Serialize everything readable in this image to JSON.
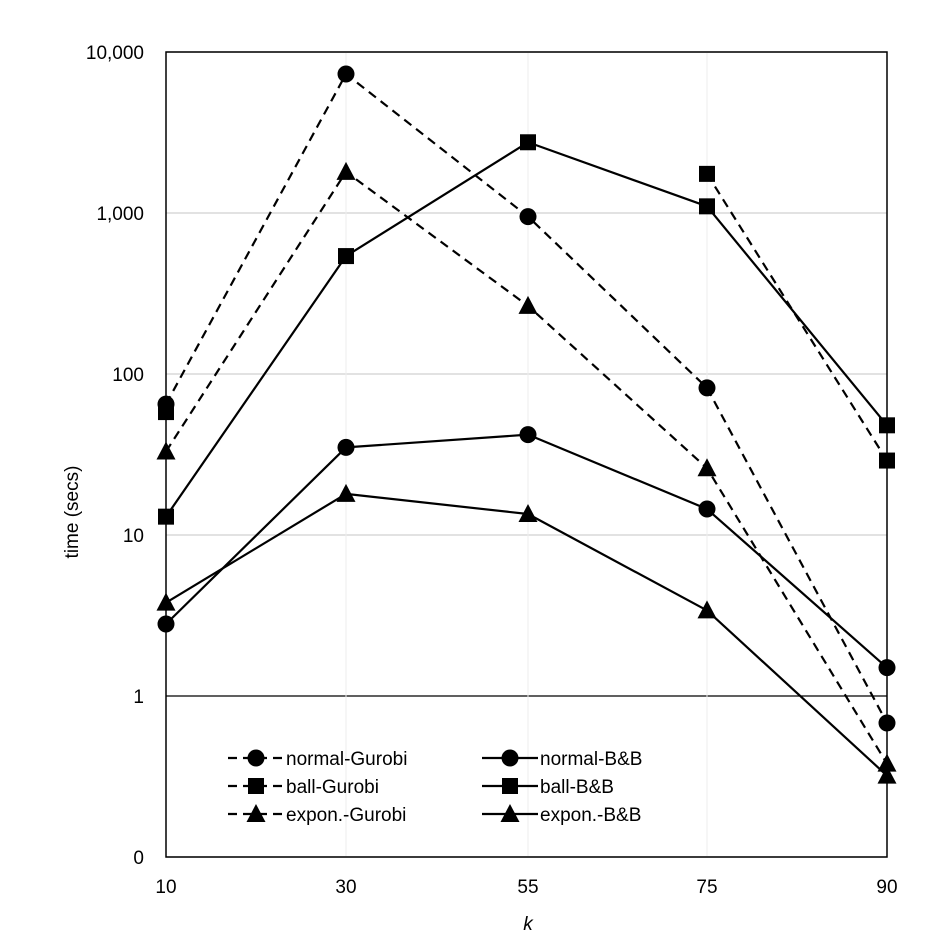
{
  "chart_data": {
    "type": "line",
    "title": "",
    "xlabel": "k",
    "ylabel": "time (secs)",
    "yscale": "log",
    "x_categories": [
      "10",
      "30",
      "55",
      "75",
      "90"
    ],
    "y_ticks": [
      {
        "value": 10000,
        "label": "10,000"
      },
      {
        "value": 1000,
        "label": "1,000"
      },
      {
        "value": 100,
        "label": "100"
      },
      {
        "value": 10,
        "label": "10"
      },
      {
        "value": 1,
        "label": "1"
      },
      {
        "value": 0.1,
        "label": "0"
      }
    ],
    "ylim": [
      0.1,
      10000
    ],
    "grid": true,
    "legend_position": "bottom-left",
    "series": [
      {
        "name": "normal-Gurobi",
        "marker": "circle",
        "dash": true,
        "values": [
          65,
          7300,
          950,
          82,
          0.68
        ]
      },
      {
        "name": "ball-Gurobi",
        "marker": "square",
        "dash": true,
        "values": [
          58,
          null,
          null,
          1750,
          29
        ]
      },
      {
        "name": "expon.-Gurobi",
        "marker": "triangle",
        "dash": true,
        "values": [
          33,
          1800,
          265,
          26,
          0.38
        ]
      },
      {
        "name": "normal-B&B",
        "marker": "circle",
        "dash": false,
        "values": [
          2.8,
          35,
          42,
          14.5,
          1.5
        ]
      },
      {
        "name": "ball-B&B",
        "marker": "square",
        "dash": false,
        "values": [
          13,
          540,
          2750,
          1100,
          48
        ]
      },
      {
        "name": "expon.-B&B",
        "marker": "triangle",
        "dash": false,
        "values": [
          3.8,
          18,
          13.5,
          3.4,
          0.32
        ]
      }
    ]
  },
  "colors": {
    "line": "#000000",
    "grid": "#d9d9d9",
    "axis": "#000000",
    "background": "#ffffff"
  }
}
